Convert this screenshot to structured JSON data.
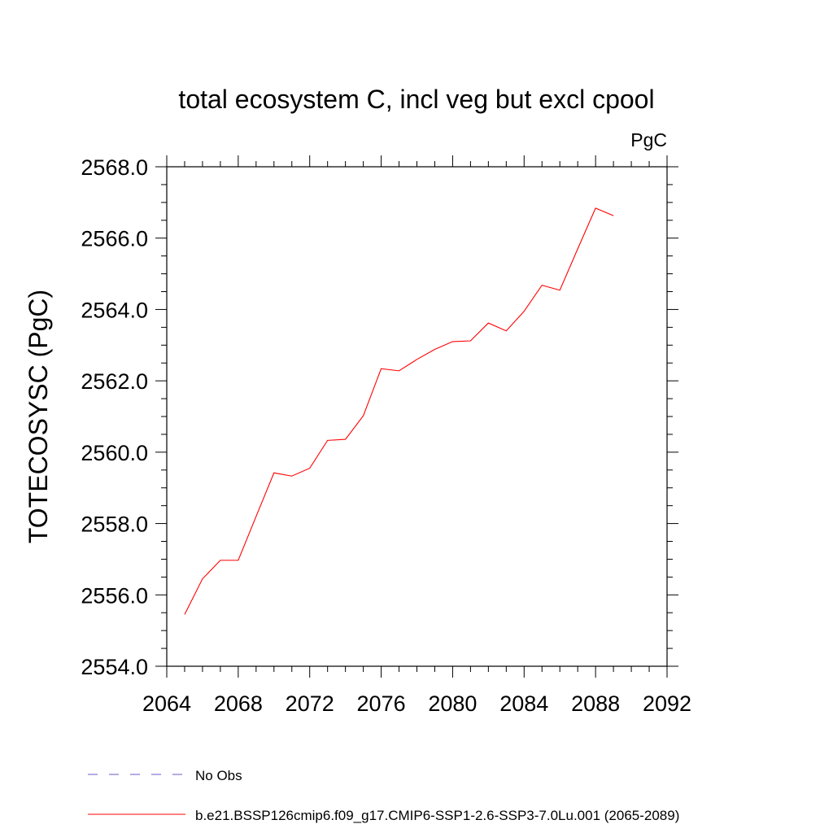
{
  "chart_data": {
    "type": "line",
    "title": "total ecosystem C, incl veg but excl cpool",
    "units_label": "PgC",
    "ylabel": "TOTECOSYSC  (PgC)",
    "xlabel": "",
    "xlim": [
      2064,
      2092
    ],
    "ylim": [
      2554.0,
      2568.0
    ],
    "xticks": [
      2064,
      2068,
      2072,
      2076,
      2080,
      2084,
      2088,
      2092
    ],
    "yticks": [
      "2554.0",
      "2556.0",
      "2558.0",
      "2560.0",
      "2562.0",
      "2564.0",
      "2566.0",
      "2568.0"
    ],
    "grid": false,
    "legend_position": "bottom",
    "series": [
      {
        "name": "b.e21.BSSP126cmip6.f09_g17.CMIP6-SSP1-2.6-SSP3-7.0Lu.001 (2065-2089)",
        "color": "#ff0000",
        "style": "solid",
        "x": [
          2065,
          2066,
          2067,
          2068,
          2069,
          2070,
          2071,
          2072,
          2073,
          2074,
          2075,
          2076,
          2077,
          2078,
          2079,
          2080,
          2081,
          2082,
          2083,
          2084,
          2085,
          2086,
          2087,
          2088,
          2089
        ],
        "y": [
          2555.45,
          2556.45,
          2556.97,
          2556.97,
          2558.2,
          2559.42,
          2559.33,
          2559.55,
          2560.33,
          2560.36,
          2561.02,
          2562.34,
          2562.28,
          2562.6,
          2562.88,
          2563.1,
          2563.12,
          2563.62,
          2563.4,
          2563.95,
          2564.68,
          2564.54,
          2565.7,
          2566.84,
          2566.63
        ]
      },
      {
        "name": "No Obs",
        "color": "#6a5acd",
        "style": "dashed",
        "x": [],
        "y": []
      }
    ]
  }
}
